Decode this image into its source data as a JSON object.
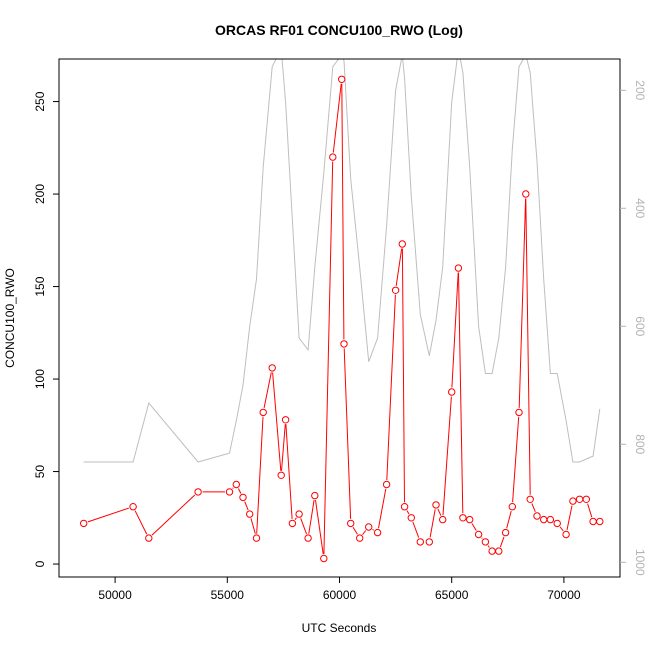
{
  "chart_data": {
    "type": "line",
    "title": "ORCAS RF01 CONCU100_RWO (Log)",
    "xlabel": "UTC Seconds",
    "ylabel": "CONCU100_RWO",
    "xlim": [
      47500,
      72500
    ],
    "ylim": [
      -7,
      273
    ],
    "x_ticks": [
      50000,
      55000,
      60000,
      65000,
      70000
    ],
    "x_tick_labels": [
      "50000",
      "55000",
      "60000",
      "65000",
      "70000"
    ],
    "y_ticks": [
      0,
      50,
      100,
      150,
      200,
      250
    ],
    "y_tick_labels": [
      "0",
      "50",
      "100",
      "150",
      "200",
      "250"
    ],
    "y2_ticks": [
      200,
      400,
      600,
      800,
      1000
    ],
    "y2_tick_labels": [
      "200",
      "400",
      "600",
      "800",
      "1000"
    ],
    "y2lim": [
      1025,
      147
    ],
    "y2_reversed": true,
    "grid": false,
    "colors": {
      "primary": "#ff0000",
      "secondary": "#bebebe",
      "secondary_axis": "#b3b3b3"
    },
    "series": [
      {
        "role": "primary",
        "markers": "open-circle",
        "x": [
          48600,
          50800,
          51500,
          53700,
          55100,
          55400,
          55700,
          56000,
          56300,
          56600,
          57000,
          57400,
          57600,
          57900,
          58200,
          58600,
          58900,
          59300,
          59700,
          60100,
          60200,
          60500,
          60900,
          61300,
          61700,
          62100,
          62500,
          62800,
          62900,
          63200,
          63600,
          64000,
          64300,
          64600,
          65000,
          65300,
          65500,
          65800,
          66200,
          66500,
          66800,
          67100,
          67400,
          67700,
          68000,
          68300,
          68500,
          68800,
          69100,
          69400,
          69700,
          70100,
          70400,
          70700,
          71000,
          71300,
          71600
        ],
        "y": [
          22,
          31,
          14,
          39,
          39,
          43,
          36,
          27,
          14,
          82,
          106,
          48,
          78,
          22,
          27,
          14,
          37,
          3,
          220,
          262,
          119,
          22,
          14,
          20,
          17,
          43,
          148,
          173,
          31,
          25,
          12,
          12,
          32,
          24,
          93,
          160,
          25,
          24,
          16,
          12,
          7,
          7,
          17,
          31,
          82,
          200,
          35,
          26,
          24,
          24,
          22,
          16,
          34,
          35,
          35,
          23,
          23
        ]
      },
      {
        "role": "secondary",
        "x": [
          48600,
          50800,
          51500,
          53700,
          55100,
          55400,
          55700,
          56000,
          56300,
          56600,
          57000,
          57400,
          57600,
          57900,
          58200,
          58600,
          58900,
          59300,
          59700,
          60100,
          60200,
          60500,
          60900,
          61300,
          61700,
          62100,
          62500,
          62800,
          62900,
          63200,
          63600,
          64000,
          64300,
          64600,
          65000,
          65300,
          65500,
          65800,
          66200,
          66500,
          66800,
          67100,
          67400,
          67700,
          68000,
          68300,
          68500,
          68800,
          69100,
          69400,
          69700,
          70100,
          70400,
          70700,
          71000,
          71300,
          71600
        ],
        "y": [
          830,
          830,
          730,
          830,
          815,
          760,
          700,
          600,
          520,
          330,
          160,
          130,
          220,
          420,
          620,
          640,
          500,
          340,
          160,
          140,
          150,
          350,
          500,
          660,
          620,
          430,
          200,
          140,
          180,
          380,
          580,
          650,
          590,
          500,
          220,
          130,
          170,
          330,
          600,
          680,
          680,
          620,
          500,
          300,
          160,
          140,
          170,
          320,
          520,
          680,
          680,
          760,
          830,
          830,
          825,
          820,
          740
        ]
      }
    ]
  }
}
